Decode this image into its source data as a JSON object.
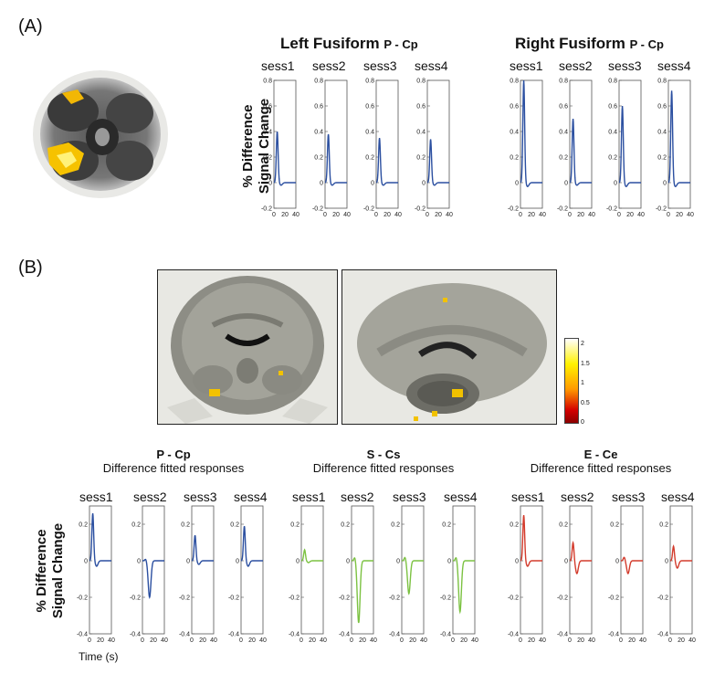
{
  "panel_a": {
    "label": "(A)",
    "ylabel_line1": "% Difference",
    "ylabel_line2": "Signal Change",
    "groups": [
      {
        "title": "Left Fusiform",
        "contrast": "P - Cp",
        "color": "#2b4fa0",
        "sessions": [
          "sess1",
          "sess2",
          "sess3",
          "sess4"
        ],
        "peaks": [
          0.4,
          0.38,
          0.35,
          0.34
        ],
        "troughs": [
          -0.02,
          -0.02,
          -0.02,
          -0.02
        ]
      },
      {
        "title": "Right Fusiform",
        "contrast": "P - Cp",
        "color": "#2b4fa0",
        "sessions": [
          "sess1",
          "sess2",
          "sess3",
          "sess4"
        ],
        "peaks": [
          0.8,
          0.5,
          0.6,
          0.72
        ],
        "troughs": [
          -0.03,
          -0.02,
          -0.03,
          -0.03
        ]
      }
    ],
    "y_ticks": [
      "0.8",
      "0.6",
      "0.4",
      "0.2",
      "0",
      "-0.2"
    ],
    "ylim": [
      -0.2,
      0.8
    ],
    "x_ticks": [
      "0",
      "20",
      "40"
    ]
  },
  "panel_b": {
    "label": "(B)",
    "colorbar_ticks": [
      "2",
      "1.5",
      "1",
      "0.5",
      "0"
    ],
    "ylabel_line1": "% Difference",
    "ylabel_line2": "Signal Change",
    "xlabel": "Time (s)",
    "y_ticks": [
      "0.2",
      "0",
      "-0.2",
      "-0.4"
    ],
    "ylim": [
      -0.4,
      0.3
    ],
    "x_ticks": [
      "0",
      "20",
      "40"
    ],
    "groups": [
      {
        "title": "P - Cp",
        "subtitle": "Difference fitted responses",
        "color": "#2b4fa0",
        "sessions": [
          "sess1",
          "sess2",
          "sess3",
          "sess4"
        ],
        "peaks": [
          0.26,
          0.01,
          0.14,
          0.19
        ],
        "troughs": [
          -0.03,
          -0.2,
          -0.02,
          -0.03
        ]
      },
      {
        "title": "S - Cs",
        "subtitle": "Difference fitted responses",
        "color": "#7cc242",
        "sessions": [
          "sess1",
          "sess2",
          "sess3",
          "sess4"
        ],
        "peaks": [
          0.06,
          0.02,
          0.02,
          0.02
        ],
        "troughs": [
          -0.01,
          -0.34,
          -0.18,
          -0.28
        ]
      },
      {
        "title": "E - Ce",
        "subtitle": "Difference fitted responses",
        "color": "#d33b2c",
        "sessions": [
          "sess1",
          "sess2",
          "sess3",
          "sess4"
        ],
        "peaks": [
          0.25,
          0.1,
          0.02,
          0.08
        ],
        "troughs": [
          -0.03,
          -0.07,
          -0.07,
          -0.04
        ]
      }
    ]
  }
}
